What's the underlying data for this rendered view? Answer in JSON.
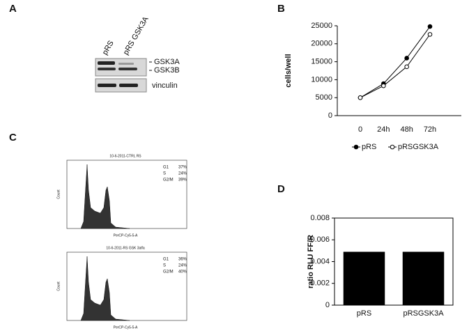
{
  "panel_labels": [
    "A",
    "B",
    "C",
    "D"
  ],
  "blot": {
    "lanes": [
      "pRS",
      "pRS GSK3A"
    ],
    "bands": [
      "GSK3A",
      "GSK3B",
      "vinculin"
    ]
  },
  "flow": [
    {
      "title": "10-6-2011-CTRL RS",
      "stats": [
        [
          "G1",
          "37%"
        ],
        [
          "S",
          "24%"
        ],
        [
          "G2/M",
          "39%"
        ]
      ],
      "xlabel": "PerCP-Cy5-5-A",
      "ylabel": "Count"
    },
    {
      "title": "10-6-2011-RS GSK 3alfa",
      "stats": [
        [
          "G1",
          "36%"
        ],
        [
          "S",
          "24%"
        ],
        [
          "G2/M",
          "40%"
        ]
      ],
      "xlabel": "PerCP-Cy5-5-A",
      "ylabel": "Count"
    }
  ],
  "chart_data": [
    {
      "type": "line",
      "ylabel": "cells/well",
      "categories": [
        "0",
        "24h",
        "48h",
        "72h"
      ],
      "series": [
        {
          "name": "pRS",
          "color": "#000000",
          "values": [
            5000,
            8900,
            16000,
            24800
          ]
        },
        {
          "name": "pRSGSK3A",
          "color": "#ffffff",
          "values": [
            5000,
            8300,
            13600,
            22600
          ]
        }
      ],
      "ylim": [
        0,
        25000
      ],
      "yticks": [
        0,
        5000,
        10000,
        15000,
        20000,
        25000
      ],
      "legend": "bottom"
    },
    {
      "type": "bar",
      "ylabel": "ratio RLU FF/R",
      "categories": [
        "pRS",
        "pRSGSK3A"
      ],
      "values": [
        0.0049,
        0.0049
      ],
      "color": "#000000",
      "ylim": [
        0,
        0.008
      ],
      "yticks": [
        0,
        0.002,
        0.004,
        0.006,
        0.008
      ],
      "frame": true
    }
  ]
}
